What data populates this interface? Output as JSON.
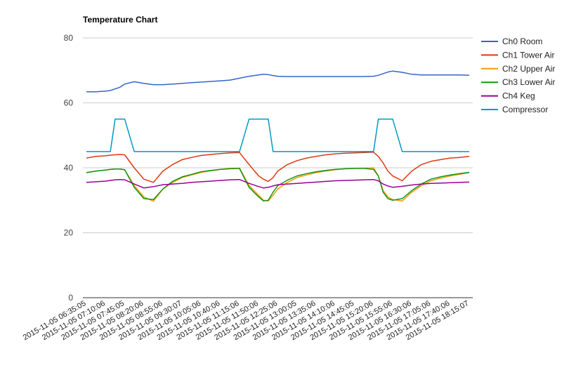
{
  "chart_data": {
    "type": "line",
    "title": "Temperature Chart",
    "xlabel": "",
    "ylabel": "",
    "ylim": [
      0,
      80
    ],
    "yticks": [
      0,
      20,
      40,
      60,
      80
    ],
    "grid": true,
    "legend_position": "right",
    "x_ticks": [
      "2015-11-05 06:35:05",
      "2015-11-05 07:10:06",
      "2015-11-05 07:45:05",
      "2015-11-05 08:20:06",
      "2015-11-05 08:55:06",
      "2015-11-05 09:30:07",
      "2015-11-05 10:05:06",
      "2015-11-05 10:40:06",
      "2015-11-05 11:15:06",
      "2015-11-05 11:50:06",
      "2015-11-05 12:25:06",
      "2015-11-05 13:00:05",
      "2015-11-05 13:35:06",
      "2015-11-05 14:10:06",
      "2015-11-05 14:45:05",
      "2015-11-05 15:20:06",
      "2015-11-05 15:55:06",
      "2015-11-05 16:30:06",
      "2015-11-05 17:05:06",
      "2015-11-05 17:40:06",
      "2015-11-05 18:15:07"
    ],
    "x_sample_positions": [
      0,
      0.5,
      1,
      1.25,
      1.5,
      1.75,
      2,
      2.5,
      3,
      3.5,
      4,
      4.5,
      5,
      5.5,
      6,
      6.5,
      7,
      7.5,
      8,
      8.5,
      9,
      9.25,
      9.5,
      9.75,
      10,
      10.5,
      11,
      11.5,
      12,
      12.5,
      13,
      13.5,
      14,
      14.5,
      15,
      15.25,
      15.5,
      15.75,
      16,
      16.5,
      17,
      17.5,
      18,
      18.5,
      19,
      19.5,
      20
    ],
    "series": [
      {
        "name": "Ch0 Room",
        "color": "#3366cc",
        "values": [
          63.4,
          63.4,
          63.6,
          63.8,
          64.3,
          64.8,
          65.8,
          66.5,
          66.0,
          65.6,
          65.6,
          65.8,
          66.0,
          66.2,
          66.4,
          66.6,
          66.8,
          67.0,
          67.6,
          68.2,
          68.6,
          68.8,
          68.7,
          68.4,
          68.2,
          68.1,
          68.1,
          68.1,
          68.1,
          68.1,
          68.1,
          68.1,
          68.1,
          68.1,
          68.2,
          68.5,
          69.0,
          69.5,
          69.8,
          69.4,
          68.8,
          68.6,
          68.6,
          68.6,
          68.6,
          68.6,
          68.5
        ]
      },
      {
        "name": "Ch1 Tower Air",
        "color": "#dc3912",
        "values": [
          43.0,
          43.5,
          43.7,
          43.9,
          44.0,
          44.1,
          44.0,
          40.0,
          36.5,
          35.5,
          39.0,
          41.0,
          42.5,
          43.2,
          43.8,
          44.1,
          44.4,
          44.6,
          44.7,
          41.0,
          37.5,
          36.5,
          35.8,
          37.0,
          39.0,
          41.0,
          42.2,
          43.0,
          43.5,
          44.0,
          44.3,
          44.5,
          44.6,
          44.7,
          44.8,
          43.5,
          41.5,
          39.0,
          37.5,
          36.0,
          39.0,
          41.0,
          42.0,
          42.5,
          43.0,
          43.2,
          43.5
        ]
      },
      {
        "name": "Ch2 Upper Air",
        "color": "#ff9900",
        "values": [
          38.5,
          39.0,
          39.3,
          39.5,
          39.6,
          39.6,
          39.4,
          34.5,
          31.0,
          29.7,
          33.5,
          35.5,
          37.0,
          37.8,
          38.6,
          39.1,
          39.5,
          39.8,
          39.9,
          34.5,
          31.5,
          30.0,
          29.8,
          31.5,
          33.5,
          35.5,
          37.0,
          37.8,
          38.5,
          39.0,
          39.4,
          39.7,
          39.8,
          39.9,
          40.0,
          37.5,
          33.0,
          31.0,
          30.2,
          29.8,
          32.5,
          34.5,
          36.0,
          36.8,
          37.5,
          38.0,
          38.5
        ]
      },
      {
        "name": "Ch3 Lower Air",
        "color": "#109618",
        "values": [
          38.5,
          39.0,
          39.3,
          39.5,
          39.6,
          39.6,
          39.4,
          34.0,
          30.5,
          30.2,
          33.5,
          35.8,
          37.2,
          38.0,
          38.8,
          39.2,
          39.5,
          39.7,
          39.8,
          34.0,
          31.0,
          29.8,
          30.0,
          32.5,
          34.5,
          36.2,
          37.5,
          38.2,
          38.8,
          39.2,
          39.5,
          39.7,
          39.8,
          39.8,
          39.5,
          37.5,
          32.5,
          30.5,
          30.0,
          30.5,
          33.0,
          35.0,
          36.5,
          37.2,
          37.8,
          38.2,
          38.6
        ]
      },
      {
        "name": "Ch4 Keg",
        "color": "#990099",
        "values": [
          35.5,
          35.7,
          35.9,
          36.1,
          36.3,
          36.4,
          36.3,
          35.0,
          33.8,
          34.2,
          34.8,
          35.0,
          35.2,
          35.5,
          35.7,
          35.9,
          36.1,
          36.3,
          36.4,
          35.2,
          34.2,
          33.8,
          34.0,
          34.4,
          34.8,
          35.0,
          35.2,
          35.4,
          35.6,
          35.8,
          36.0,
          36.1,
          36.2,
          36.3,
          36.4,
          36.0,
          35.0,
          34.4,
          34.0,
          34.3,
          34.7,
          35.0,
          35.2,
          35.3,
          35.4,
          35.5,
          35.6
        ]
      },
      {
        "name": "Compressor",
        "color": "#0099c6",
        "values": [
          45,
          45,
          45,
          45,
          55,
          55,
          55,
          45,
          45,
          45,
          45,
          45,
          45,
          45,
          45,
          45,
          45,
          45,
          45,
          55,
          55,
          55,
          55,
          45,
          45,
          45,
          45,
          45,
          45,
          45,
          45,
          45,
          45,
          45,
          45,
          55,
          55,
          55,
          55,
          45,
          45,
          45,
          45,
          45,
          45,
          45,
          45
        ]
      }
    ]
  }
}
